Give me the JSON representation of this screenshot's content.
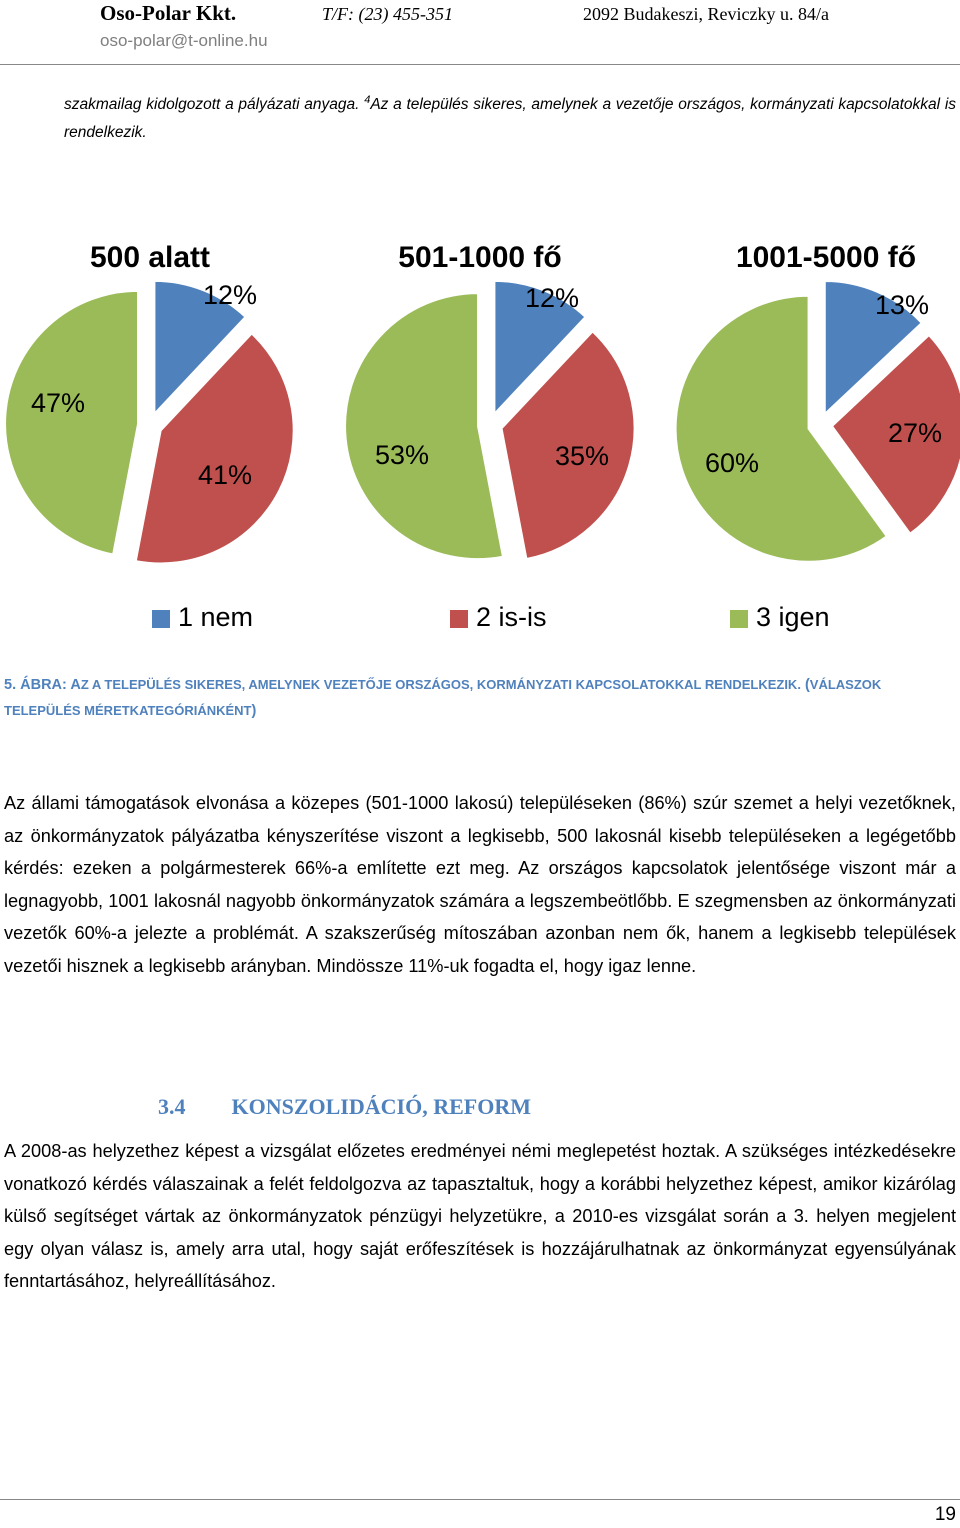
{
  "header": {
    "company": "Oso-Polar Kkt.",
    "phone": "T/F: (23) 455-351",
    "address": "2092 Budakeszi, Reviczky u. 84/a",
    "email": "oso-polar@t-online.hu"
  },
  "footnote": {
    "text_before": "szakmailag kidolgozott a pályázati anyaga.",
    "marker": "4",
    "text_after": "Az a település sikeres, amelynek a vezetője országos, kormányzati kapcsolatokkal is rendelkezik."
  },
  "chart_data": [
    {
      "type": "pie",
      "title": "500 alatt",
      "labels": [
        "1 nem",
        "2 is-is",
        "3 igen"
      ],
      "values": [
        12,
        41,
        47
      ],
      "value_labels": [
        "12%",
        "41%",
        "47%"
      ]
    },
    {
      "type": "pie",
      "title": "501-1000 fő",
      "labels": [
        "1 nem",
        "2 is-is",
        "3 igen"
      ],
      "values": [
        12,
        35,
        53
      ],
      "value_labels": [
        "12%",
        "35%",
        "53%"
      ]
    },
    {
      "type": "pie",
      "title": "1001-5000 fő",
      "labels": [
        "1 nem",
        "2 is-is",
        "3 igen"
      ],
      "values": [
        13,
        27,
        60
      ],
      "value_labels": [
        "13%",
        "27%",
        "60%"
      ]
    }
  ],
  "legend": {
    "items": [
      {
        "label": "1 nem",
        "color": "#4f81bd"
      },
      {
        "label": "2 is-is",
        "color": "#c0504d"
      },
      {
        "label": "3 igen",
        "color": "#9bbb59"
      }
    ],
    "placement": "bottom"
  },
  "caption": {
    "prefix": "5. ÁBRA: A",
    "text": "Z A TELEPÜLÉS SIKERES, AMELYNEK VEZETŐJE ORSZÁGOS, KORMÁNYZATI KAPCSOLATOKKAL RENDELKEZIK.",
    "open_paren": " (",
    "paren_text": "VÁLASZOK TELEPÜLÉS MÉRETKATEGÓRIÁNKÉNT",
    "close_paren": ")"
  },
  "paragraph1": "Az állami támogatások elvonása a közepes (501-1000 lakosú) településeken (86%) szúr szemet a helyi vezetőknek, az önkormányzatok pályázatba kényszerítése viszont a legkisebb, 500 lakosnál kisebb településeken a legégetőbb kérdés: ezeken a polgármesterek 66%-a említette ezt meg. Az országos kapcsolatok jelentősége viszont már a legnagyobb, 1001 lakosnál nagyobb önkormányzatok számára a legszembeötlőbb. E szegmensben az önkormányzati vezetők 60%-a jelezte a problémát. A szakszerűség mítoszában azonban nem ők, hanem a legkisebb települések vezetői hisznek a legkisebb arányban. Mindössze 11%-uk fogadta el, hogy igaz lenne.",
  "section": {
    "number": "3.4",
    "title": "KONSZOLIDÁCIÓ, REFORM"
  },
  "paragraph2": "A 2008-as helyzethez képest a vizsgálat előzetes eredményei némi meglepetést hoztak. A szükséges intézkedésekre vonatkozó kérdés válaszainak a felét feldolgozva az tapasztaltuk, hogy a korábbi helyzethez képest, amikor kizárólag külső segítséget vártak az önkormányzatok pénzügyi helyzetükre, a 2010-es vizsgálat során a 3. helyen megjelent egy olyan válasz is, amely arra utal, hogy saját erőfeszítések is hozzájárulhatnak az önkormányzat egyensúlyának fenntartásához, helyreállításához.",
  "page_number": "19"
}
